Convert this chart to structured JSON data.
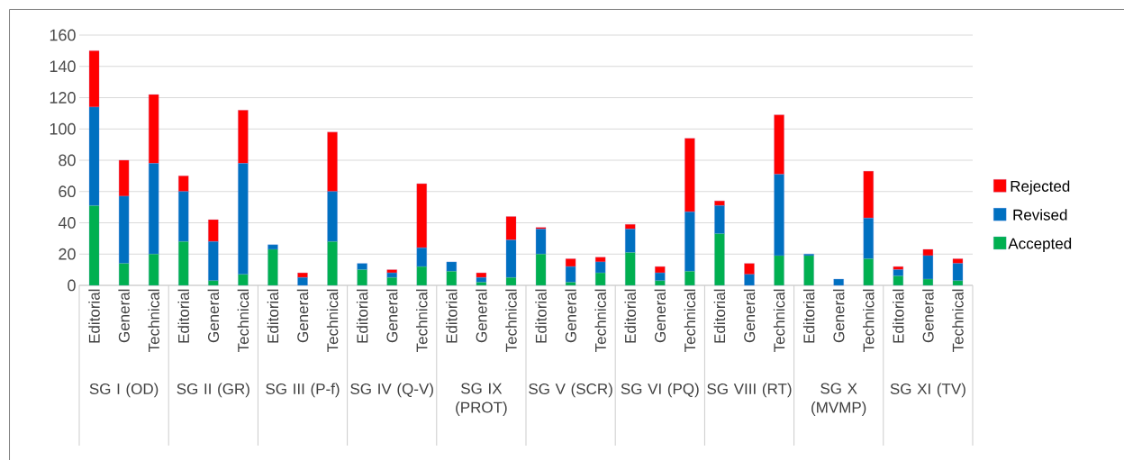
{
  "chart_data": {
    "type": "bar",
    "stacked": true,
    "categories": [
      "Editorial",
      "General",
      "Technical",
      "Editorial",
      "General",
      "Technical",
      "Editorial",
      "General",
      "Technical",
      "Editorial",
      "General",
      "Technical",
      "Editorial",
      "General",
      "Technical",
      "Editorial",
      "General",
      "Technical",
      "Editorial",
      "General",
      "Technical",
      "Editorial",
      "General",
      "Technical",
      "Editorial",
      "General",
      "Technical",
      "Editorial",
      "General",
      "Technical"
    ],
    "series": [
      {
        "name": "Accepted",
        "color": "#00b050",
        "values": [
          51,
          14,
          20,
          28,
          3,
          7,
          23,
          0,
          28,
          10,
          5,
          12,
          9,
          2,
          5,
          20,
          2,
          8,
          21,
          3,
          9,
          33,
          0,
          19,
          19,
          0,
          17,
          6,
          4,
          3
        ]
      },
      {
        "name": "Revised",
        "color": "#0070c0",
        "values": [
          63,
          43,
          58,
          32,
          25,
          71,
          3,
          5,
          32,
          4,
          3,
          12,
          6,
          3,
          24,
          16,
          10,
          7,
          15,
          5,
          38,
          18,
          7,
          52,
          1,
          4,
          26,
          4,
          15,
          11
        ]
      },
      {
        "name": "Rejected",
        "color": "#ff0000",
        "values": [
          36,
          23,
          44,
          10,
          14,
          34,
          0,
          3,
          38,
          0,
          2,
          41,
          0,
          3,
          15,
          1,
          5,
          3,
          3,
          4,
          47,
          3,
          7,
          38,
          0,
          0,
          30,
          2,
          4,
          3
        ]
      }
    ],
    "annotations": [
      "SG I (OD)",
      "SG II (GR)",
      "SG III (P-f)",
      "SG IV (Q-V)",
      "SG IX (PROT)",
      "SG V (SCR)",
      "SG VI (PQ)",
      "SG VIII (RT)",
      "SG X (MVMP)",
      "SG XI (TV)"
    ],
    "ylim": [
      0,
      160
    ],
    "yticks": [
      0,
      20,
      40,
      60,
      80,
      100,
      120,
      140,
      160
    ],
    "grid": "y",
    "legend": "right"
  }
}
